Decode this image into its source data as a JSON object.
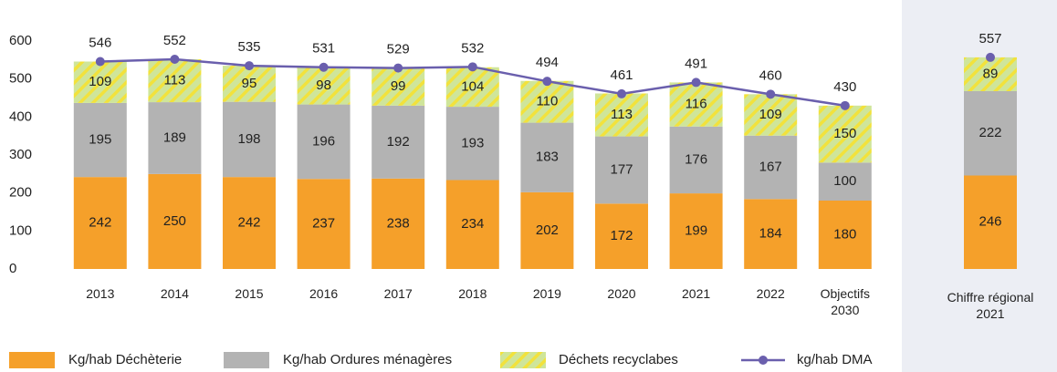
{
  "chart_data": [
    {
      "type": "bar",
      "stacked": true,
      "categories": [
        "2013",
        "2014",
        "2015",
        "2016",
        "2017",
        "2018",
        "2019",
        "2020",
        "2021",
        "2022",
        "Objectifs 2030"
      ],
      "series": [
        {
          "name": "Kg/hab Déchèterie",
          "color": "#f5a02a",
          "values": [
            242,
            250,
            242,
            237,
            238,
            234,
            202,
            172,
            199,
            184,
            180
          ]
        },
        {
          "name": "Kg/hab Ordures ménagères",
          "color": "#b3b3b3",
          "values": [
            195,
            189,
            198,
            196,
            192,
            193,
            183,
            177,
            176,
            167,
            100
          ]
        },
        {
          "name": "Déchets recyclabes",
          "color": "#cfe59a",
          "hatch_color": "#f2e23c",
          "values": [
            109,
            113,
            95,
            98,
            99,
            104,
            110,
            113,
            116,
            109,
            150
          ]
        },
        {
          "name": "kg/hab DMA",
          "type": "line",
          "color": "#6a5fad",
          "values": [
            546,
            552,
            535,
            531,
            529,
            532,
            494,
            461,
            491,
            460,
            430
          ]
        }
      ],
      "ylim": [
        0,
        600
      ],
      "yticks": [
        0,
        100,
        200,
        300,
        400,
        500,
        600
      ],
      "grid": false,
      "legend": "bottom"
    },
    {
      "type": "bar",
      "stacked": true,
      "categories": [
        "Chiffre régional 2021"
      ],
      "series": [
        {
          "color": "#f5a02a",
          "values": [
            246
          ]
        },
        {
          "color": "#b3b3b3",
          "values": [
            222
          ]
        },
        {
          "color": "#cfe59a",
          "hatch_color": "#f2e23c",
          "values": [
            89
          ]
        },
        {
          "type": "line",
          "color": "#6a5fad",
          "values": [
            557
          ]
        }
      ],
      "ylim": [
        0,
        600
      ]
    }
  ]
}
